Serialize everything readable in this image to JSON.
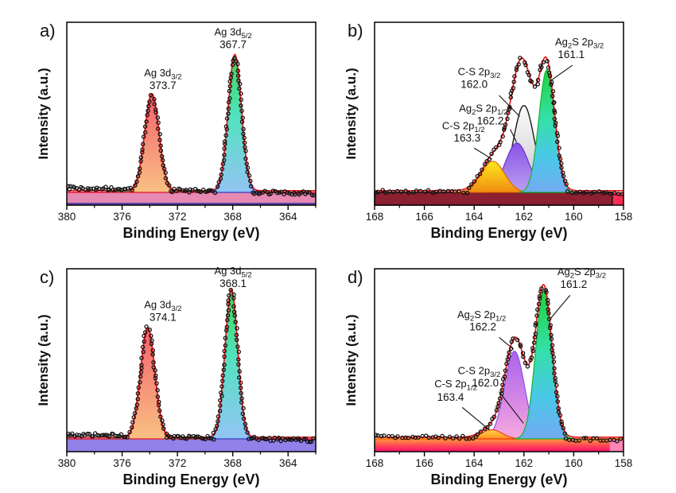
{
  "figure": {
    "xlabel": "Binding Energy (eV)",
    "ylabel": "Intensity (a.u.)",
    "envelope_color": "#ee1518",
    "data_point_color": "#111111",
    "background": "#ffffff"
  },
  "chart_data": [
    {
      "id": "a",
      "panel_label": "a)",
      "type": "area",
      "xlabel": "Binding Energy (eV)",
      "ylabel": "Intensity (a.u.)",
      "x_range": [
        380,
        362
      ],
      "x_ticks": [
        380,
        376,
        372,
        368,
        364
      ],
      "x_minor_ticks": [
        378,
        374,
        370,
        366,
        362
      ],
      "grid": false,
      "peaks": [
        {
          "name": "Ag 3d3/2",
          "segs": [
            {
              "t": "Ag 3d"
            },
            {
              "t": "3/2",
              "s": true
            }
          ],
          "position": 373.7,
          "center": 373.85,
          "height": 0.53,
          "sigma": 0.52,
          "fill": [
            [
              "0%",
              "#f4626d"
            ],
            [
              "100%",
              "#f9c083"
            ]
          ],
          "stroke": "#e8232d"
        },
        {
          "name": "Ag 3d5/2",
          "segs": [
            {
              "t": "Ag 3d"
            },
            {
              "t": "5/2",
              "s": true
            }
          ],
          "position": 367.7,
          "center": 367.85,
          "height": 0.745,
          "sigma": 0.48,
          "fill": [
            [
              "0%",
              "#3ed657"
            ],
            [
              "45%",
              "#52e2c0"
            ],
            [
              "100%",
              "#93c4f4"
            ]
          ],
          "stroke": "#2b4fd8"
        }
      ],
      "annotations": [
        {
          "segs": [
            {
              "t": "Ag 3d"
            },
            {
              "t": "3/2",
              "s": true
            }
          ],
          "value": "373.7",
          "nfx": 0.386,
          "nfy": 0.295,
          "vfx": 0.386,
          "vfy": 0.365
        },
        {
          "segs": [
            {
              "t": "Ag 3d"
            },
            {
              "t": "5/2",
              "s": true
            }
          ],
          "value": "367.7",
          "nfx": 0.668,
          "nfy": 0.072,
          "vfx": 0.668,
          "vfy": 0.142
        }
      ],
      "band": {
        "type": "solid",
        "color": "#e689b3",
        "top_line": "#e8112d",
        "bottom_strip": "#5b3fa8"
      },
      "baseline_segment": {
        "from": 377.2,
        "to": 369.2,
        "color": "#22b14c"
      },
      "flat_spacing": 2.4,
      "flat_jitter": 2.3,
      "noise_factor": 1.2,
      "tilt": [
        0.905,
        0.937
      ]
    },
    {
      "id": "b",
      "panel_label": "b)",
      "type": "area",
      "xlabel": "Binding Energy (eV)",
      "ylabel": "Intensity (a.u.)",
      "x_range": [
        168,
        158
      ],
      "x_ticks": [
        168,
        166,
        164,
        162,
        160,
        158
      ],
      "x_minor_ticks": [
        167,
        165,
        163,
        161,
        159
      ],
      "grid": false,
      "peaks": [
        {
          "name": "C-S 2p3/2",
          "segs": [
            {
              "t": "C-S 2p"
            },
            {
              "t": "3/2",
              "s": true
            }
          ],
          "position": 162.0,
          "center": 162.0,
          "height": 0.475,
          "sigma": 0.42,
          "fill": [
            [
              "0%",
              "#fbfbfb"
            ],
            [
              "100%",
              "#c6c6cc"
            ]
          ],
          "stroke": "#1a1a1a"
        },
        {
          "name": "Ag2S 2p1/2",
          "segs": [
            {
              "t": "Ag"
            },
            {
              "t": "2",
              "s": true
            },
            {
              "t": "S 2p"
            },
            {
              "t": "1/2",
              "s": true
            }
          ],
          "position": 162.2,
          "center": 162.28,
          "height": 0.27,
          "sigma": 0.47,
          "fill": [
            [
              "0%",
              "#8a52e8"
            ],
            [
              "100%",
              "#b9a0f0"
            ]
          ],
          "stroke": "#6a35d0"
        },
        {
          "name": "C-S 2p1/2",
          "segs": [
            {
              "t": "C-S 2p"
            },
            {
              "t": "1/2",
              "s": true
            }
          ],
          "position": 163.3,
          "center": 163.25,
          "height": 0.17,
          "sigma": 0.47,
          "fill": [
            [
              "0%",
              "#ffe81c"
            ],
            [
              "100%",
              "#f08c12"
            ]
          ],
          "stroke": "#e86a00"
        },
        {
          "name": "Ag2S 2p3/2",
          "segs": [
            {
              "t": "Ag"
            },
            {
              "t": "2",
              "s": true
            },
            {
              "t": "S 2p"
            },
            {
              "t": "3/2",
              "s": true
            }
          ],
          "position": 161.1,
          "center": 161.08,
          "height": 0.67,
          "sigma": 0.32,
          "fill": [
            [
              "0%",
              "#1fd23c"
            ],
            [
              "40%",
              "#35e0a8"
            ],
            [
              "72%",
              "#49c8e8"
            ],
            [
              "100%",
              "#74aaf2"
            ]
          ],
          "stroke": "#12b534"
        }
      ],
      "annotations": [
        {
          "segs": [
            {
              "t": "Ag"
            },
            {
              "t": "2",
              "s": true
            },
            {
              "t": "S 2p"
            },
            {
              "t": "3/2",
              "s": true
            }
          ],
          "value": "161.1",
          "nfx": 0.823,
          "nfy": 0.125,
          "vfx": 0.79,
          "vfy": 0.196,
          "ptr": [
            0.795,
            0.235,
            160.88,
            0.315
          ]
        },
        {
          "segs": [
            {
              "t": "C-S 2p"
            },
            {
              "t": "3/2",
              "s": true
            }
          ],
          "value": "162.0",
          "nfx": 0.42,
          "nfy": 0.29,
          "vfx": 0.4,
          "vfy": 0.358,
          "ptr": [
            0.5,
            0.4,
            162.17,
            0.515
          ]
        },
        {
          "segs": [
            {
              "t": "Ag"
            },
            {
              "t": "2",
              "s": true
            },
            {
              "t": "S 2p"
            },
            {
              "t": "1/2",
              "s": true
            }
          ],
          "value": "162.2",
          "nfx": 0.437,
          "nfy": 0.49,
          "vfx": 0.465,
          "vfy": 0.558,
          "ptr": [
            0.545,
            0.585,
            162.3,
            0.655
          ]
        },
        {
          "segs": [
            {
              "t": "C-S 2p"
            },
            {
              "t": "1/2",
              "s": true
            }
          ],
          "value": "163.3",
          "nfx": 0.357,
          "nfy": 0.585,
          "vfx": 0.372,
          "vfy": 0.652,
          "ptr": [
            0.4,
            0.688,
            163.28,
            0.748
          ]
        }
      ],
      "band": {
        "type": "split",
        "main": "#8c2030",
        "outline": "#0a0a0a",
        "split_at": 158.45,
        "right": "#ff2d55"
      },
      "flat_spacing": 4.8,
      "flat_jitter": 1.8,
      "noise_factor": 5,
      "tilt": [
        0.924,
        0.934
      ]
    },
    {
      "id": "c",
      "panel_label": "c)",
      "type": "area",
      "xlabel": "Binding Energy (eV)",
      "ylabel": "Intensity (a.u.)",
      "x_range": [
        380,
        362
      ],
      "x_ticks": [
        380,
        376,
        372,
        368,
        364
      ],
      "x_minor_ticks": [
        378,
        374,
        370,
        366,
        362
      ],
      "grid": false,
      "peaks": [
        {
          "name": "Ag 3d3/2",
          "segs": [
            {
              "t": "Ag 3d"
            },
            {
              "t": "3/2",
              "s": true
            }
          ],
          "position": 374.1,
          "center": 374.15,
          "height": 0.6,
          "sigma": 0.52,
          "fill": [
            [
              "0%",
              "#f4626d"
            ],
            [
              "100%",
              "#f9c083"
            ]
          ],
          "stroke": "#e8232d"
        },
        {
          "name": "Ag 3d5/2",
          "segs": [
            {
              "t": "Ag 3d"
            },
            {
              "t": "5/2",
              "s": true
            }
          ],
          "position": 368.1,
          "center": 368.1,
          "height": 0.81,
          "sigma": 0.46,
          "fill": [
            [
              "0%",
              "#3ed657"
            ],
            [
              "45%",
              "#52e2c0"
            ],
            [
              "100%",
              "#93c4f4"
            ]
          ],
          "stroke": "#2b4fd8"
        }
      ],
      "annotations": [
        {
          "segs": [
            {
              "t": "Ag 3d"
            },
            {
              "t": "3/2",
              "s": true
            }
          ],
          "value": "374.1",
          "nfx": 0.386,
          "nfy": 0.215,
          "vfx": 0.386,
          "vfy": 0.285
        },
        {
          "segs": [
            {
              "t": "Ag 3d"
            },
            {
              "t": "5/2",
              "s": true
            }
          ],
          "value": "368.1",
          "nfx": 0.668,
          "nfy": 0.03,
          "vfx": 0.668,
          "vfy": 0.1
        }
      ],
      "band": {
        "type": "solid",
        "color": "#9181e8",
        "top_line": "#e8112d"
      },
      "baseline_segment": {
        "from": 377.2,
        "to": 369.2,
        "color": "#22b14c"
      },
      "flat_spacing": 2.4,
      "flat_jitter": 2.3,
      "noise_factor": 1.2,
      "tilt": [
        0.905,
        0.937
      ]
    },
    {
      "id": "d",
      "panel_label": "d)",
      "type": "area",
      "xlabel": "Binding Energy (eV)",
      "ylabel": "Intensity (a.u.)",
      "x_range": [
        168,
        158
      ],
      "x_ticks": [
        168,
        166,
        164,
        162,
        160,
        158
      ],
      "x_minor_ticks": [
        167,
        165,
        163,
        161,
        159
      ],
      "grid": false,
      "peaks": [
        {
          "name": "C-S 2p3/2",
          "segs": [
            {
              "t": "C-S 2p"
            },
            {
              "t": "3/2",
              "s": true
            }
          ],
          "position": 162.0,
          "center": 162.0,
          "height": 0.085,
          "sigma": 0.45,
          "fill": [
            [
              "0%",
              "#c9a8f0"
            ],
            [
              "100%",
              "#e3c8f6"
            ]
          ],
          "stroke": "#9a6ae8"
        },
        {
          "name": "Ag2S 2p1/2",
          "segs": [
            {
              "t": "Ag"
            },
            {
              "t": "2",
              "s": true
            },
            {
              "t": "S 2p"
            },
            {
              "t": "1/2",
              "s": true
            }
          ],
          "position": 162.2,
          "center": 162.38,
          "height": 0.48,
          "sigma": 0.4,
          "fill": [
            [
              "0%",
              "#a863ec"
            ],
            [
              "60%",
              "#d98ae4"
            ],
            [
              "100%",
              "#f6abdf"
            ]
          ],
          "stroke": "#8a52e8"
        },
        {
          "name": "C-S 2p1/2",
          "segs": [
            {
              "t": "C-S 2p"
            },
            {
              "t": "1/2",
              "s": true
            }
          ],
          "position": 163.4,
          "center": 163.3,
          "height": 0.05,
          "sigma": 0.42,
          "fill": [
            [
              "0%",
              "#ffd24d"
            ],
            [
              "100%",
              "#ff9020"
            ]
          ],
          "stroke": "#f04018"
        },
        {
          "name": "Ag2S 2p3/2",
          "segs": [
            {
              "t": "Ag"
            },
            {
              "t": "2",
              "s": true
            },
            {
              "t": "S 2p"
            },
            {
              "t": "3/2",
              "s": true
            }
          ],
          "position": 161.2,
          "center": 161.2,
          "height": 0.81,
          "sigma": 0.33,
          "fill": [
            [
              "0%",
              "#1fd23c"
            ],
            [
              "40%",
              "#35e0a8"
            ],
            [
              "72%",
              "#49c8e8"
            ],
            [
              "100%",
              "#74aaf2"
            ]
          ],
          "stroke": "#12b534"
        }
      ],
      "annotations": [
        {
          "segs": [
            {
              "t": "Ag"
            },
            {
              "t": "2",
              "s": true
            },
            {
              "t": "S 2p"
            },
            {
              "t": "3/2",
              "s": true
            }
          ],
          "value": "161.2",
          "nfx": 0.832,
          "nfy": 0.035,
          "vfx": 0.8,
          "vfy": 0.105,
          "ptr": [
            0.785,
            0.145,
            160.92,
            0.27
          ]
        },
        {
          "segs": [
            {
              "t": "Ag"
            },
            {
              "t": "2",
              "s": true
            },
            {
              "t": "S 2p"
            },
            {
              "t": "1/2",
              "s": true
            }
          ],
          "value": "162.2",
          "nfx": 0.43,
          "nfy": 0.27,
          "vfx": 0.435,
          "vfy": 0.338,
          "ptr": [
            0.5,
            0.375,
            162.42,
            0.44
          ]
        },
        {
          "segs": [
            {
              "t": "C-S 2p"
            },
            {
              "t": "3/2",
              "s": true
            }
          ],
          "value": "162.0",
          "nfx": 0.42,
          "nfy": 0.575,
          "vfx": 0.445,
          "vfy": 0.643,
          "ptr": [
            0.5,
            0.672,
            162.02,
            0.845
          ]
        },
        {
          "segs": [
            {
              "t": "C-S 2p"
            },
            {
              "t": "1/2",
              "s": true
            }
          ],
          "value": "163.4",
          "nfx": 0.326,
          "nfy": 0.648,
          "vfx": 0.305,
          "vfy": 0.722,
          "ptr": [
            0.352,
            0.758,
            163.38,
            0.882
          ]
        }
      ],
      "band": {
        "type": "gradient",
        "stops": [
          [
            "0%",
            "#ff9a3d"
          ],
          [
            "55%",
            "#ff4456"
          ],
          [
            "100%",
            "#ff0f6e"
          ]
        ],
        "split_at": 158.55,
        "right": "#ff85b5",
        "top_line": "#ff6a00"
      },
      "flat_spacing": 4.2,
      "flat_jitter": 1.9,
      "noise_factor": 2.5,
      "tilt": [
        0.916,
        0.936
      ]
    }
  ]
}
